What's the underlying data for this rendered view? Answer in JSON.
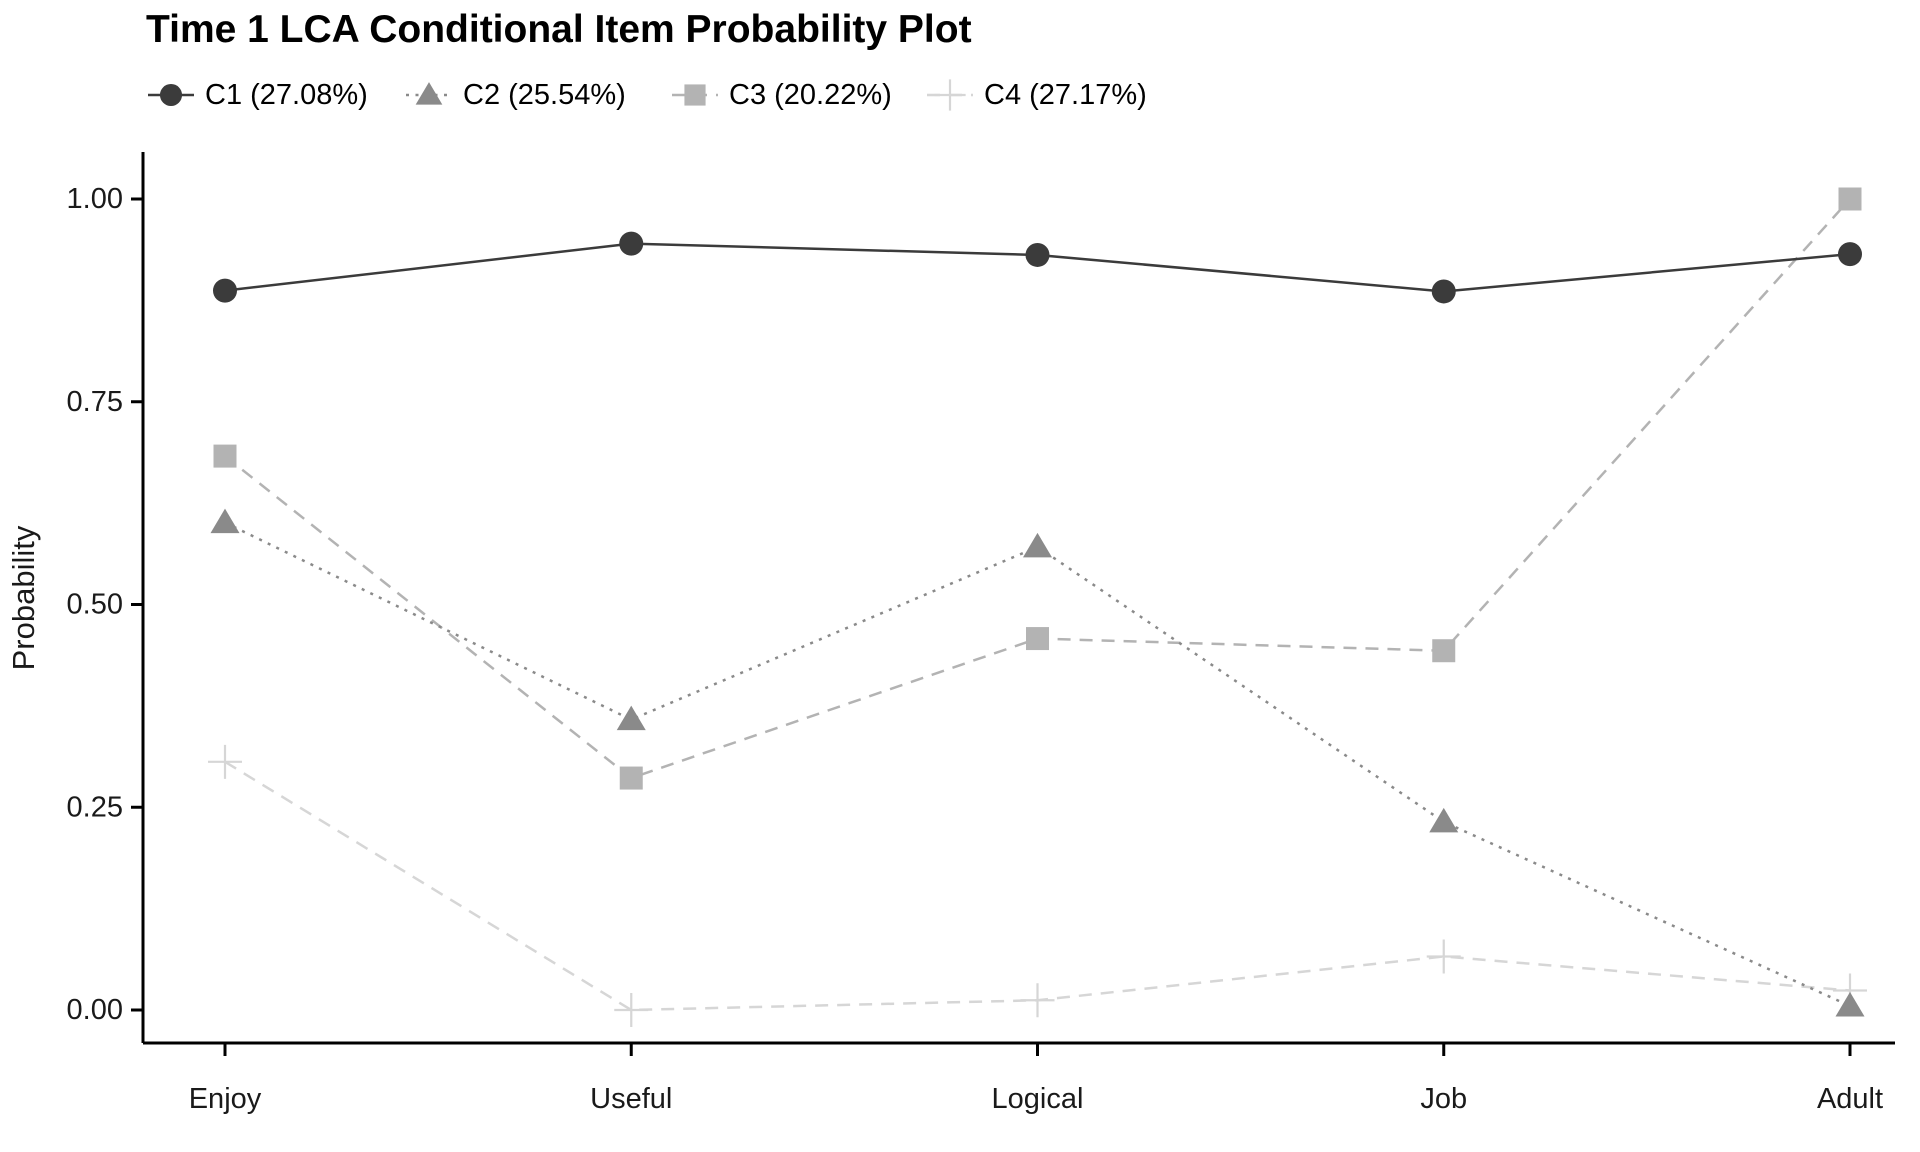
{
  "title": "Time 1 LCA Conditional Item Probability Plot",
  "y_axis_title": "Probability",
  "chart_data": {
    "type": "line",
    "title": "Time 1 LCA Conditional Item Probability Plot",
    "xlabel": "",
    "ylabel": "Probability",
    "categories": [
      "Enjoy",
      "Useful",
      "Logical",
      "Job",
      "Adult"
    ],
    "series": [
      {
        "name": "C1",
        "legend_label": "C1 (27.08%)",
        "class_share_pct": 27.08,
        "marker": "circle",
        "line_style": "solid",
        "color": "#3b3b3b",
        "values": [
          0.887,
          0.945,
          0.931,
          0.886,
          0.932
        ]
      },
      {
        "name": "C2",
        "legend_label": "C2 (25.54%)",
        "class_share_pct": 25.54,
        "marker": "triangle",
        "line_style": "dotted",
        "color": "#8a8a8a",
        "values": [
          0.601,
          0.358,
          0.571,
          0.232,
          0.005
        ]
      },
      {
        "name": "C3",
        "legend_label": "C3 (20.22%)",
        "class_share_pct": 20.22,
        "marker": "square",
        "line_style": "dashed",
        "color": "#b3b3b3",
        "values": [
          0.683,
          0.286,
          0.458,
          0.443,
          1.0
        ]
      },
      {
        "name": "C4",
        "legend_label": "C4 (27.17%)",
        "class_share_pct": 27.17,
        "marker": "plus",
        "line_style": "dashed",
        "color": "#d6d6d6",
        "values": [
          0.306,
          0.0,
          0.012,
          0.066,
          0.024
        ]
      }
    ],
    "ylim": [
      0,
      1
    ],
    "y_ticks": {
      "values": [
        1.0,
        0.75,
        0.5,
        0.25,
        0.0
      ],
      "labels": [
        "1.00",
        "0.75",
        "0.50",
        "0.25",
        "0.00"
      ]
    },
    "grid": false,
    "legend_position": "top-left",
    "axis_color": "#000000",
    "tick_label_color": "#1a1a1a"
  }
}
